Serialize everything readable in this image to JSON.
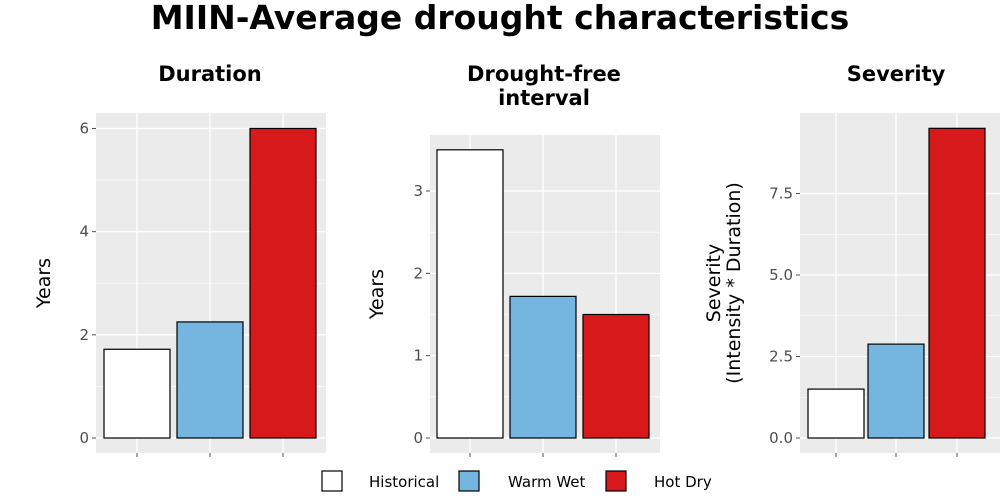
{
  "title": "MIIN-Average drought characteristics",
  "legend": {
    "placement": "bottom",
    "items": [
      {
        "label": "Historical",
        "color": "#ffffff"
      },
      {
        "label": "Warm Wet",
        "color": "#75b6e0"
      },
      {
        "label": "Hot Dry",
        "color": "#d7191c"
      }
    ]
  },
  "chart_data": [
    {
      "type": "bar",
      "title": "Duration",
      "ylabel": "Years",
      "categories": [
        "Historical",
        "Warm Wet",
        "Hot Dry"
      ],
      "values": [
        1.72,
        2.25,
        6.0
      ],
      "yticks": [
        0,
        2,
        4,
        6
      ],
      "ytick_labels": [
        "0",
        "2",
        "4",
        "6"
      ],
      "ylim": [
        0,
        6.3
      ],
      "grid": true
    },
    {
      "type": "bar",
      "title": "Drought-free interval",
      "title_lines": [
        "Drought-free",
        "interval"
      ],
      "ylabel": "Years",
      "categories": [
        "Historical",
        "Warm Wet",
        "Hot Dry"
      ],
      "values": [
        3.5,
        1.72,
        1.5
      ],
      "yticks": [
        0,
        1,
        2,
        3
      ],
      "ytick_labels": [
        "0",
        "1",
        "2",
        "3"
      ],
      "ylim": [
        0,
        3.68
      ],
      "grid": true
    },
    {
      "type": "bar",
      "title": "Severity",
      "ylabel": "Severity\n(Intensity * Duration)",
      "ylabel_lines": [
        "Severity",
        "(Intensity * Duration)"
      ],
      "categories": [
        "Historical",
        "Warm Wet",
        "Hot Dry"
      ],
      "values": [
        1.5,
        2.88,
        9.5
      ],
      "yticks": [
        0,
        2.5,
        5,
        7.5
      ],
      "ytick_labels": [
        "0.0",
        "2.5",
        "5.0",
        "7.5"
      ],
      "ylim": [
        0,
        9.97
      ],
      "grid": true
    }
  ]
}
